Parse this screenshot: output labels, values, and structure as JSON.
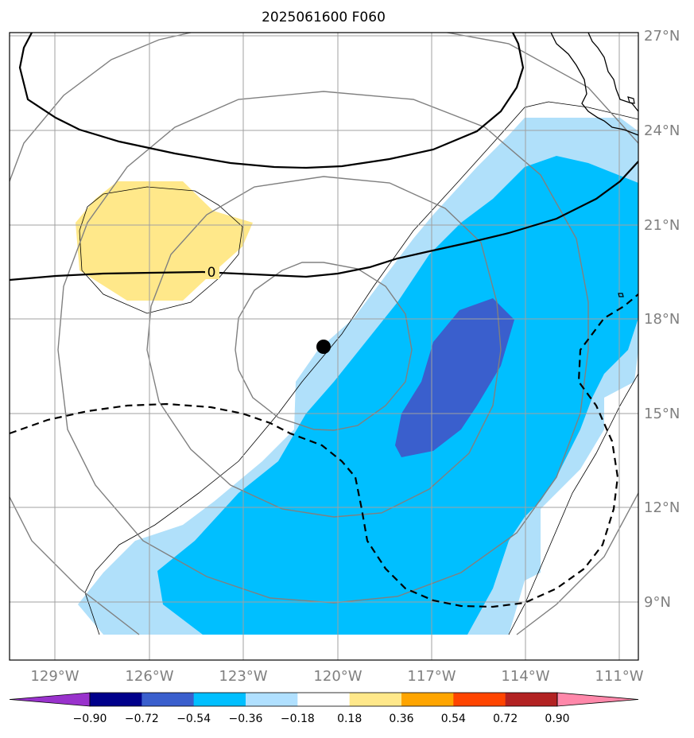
{
  "title": "2025061600 F060",
  "lat_ticks": [
    "27°N",
    "24°N",
    "21°N",
    "18°N",
    "15°N",
    "12°N",
    "9°N"
  ],
  "lon_ticks": [
    "129°W",
    "126°W",
    "123°W",
    "120°W",
    "117°W",
    "114°W",
    "111°W"
  ],
  "contour_label": "0",
  "colorbar": {
    "labels": [
      "−0.90",
      "−0.72",
      "−0.54",
      "−0.36",
      "−0.18",
      "0.18",
      "0.36",
      "0.54",
      "0.72",
      "0.90"
    ],
    "colors": [
      "#9932cc",
      "#00008b",
      "#3a5fcd",
      "#00bfff",
      "#b0e0ff",
      "#ffffff",
      "#ffe88a",
      "#ffa500",
      "#ff4500",
      "#b22222",
      "#ff88aa"
    ]
  },
  "storm_marker": {
    "lat": 17.1,
    "lon": -120.4
  },
  "fill_colors": {
    "light_blue": "#b0e0fa",
    "deep_sky_blue": "#00bfff",
    "royal_blue": "#3a5fcd",
    "light_yellow": "#ffe88a"
  }
}
